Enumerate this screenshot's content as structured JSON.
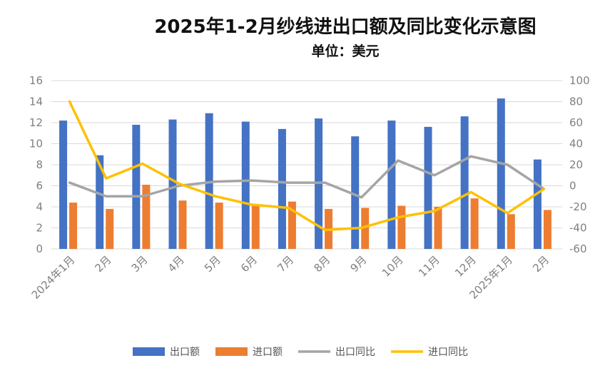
{
  "chart_data": {
    "type": "bar",
    "title": "2025年1-2月纱线进出口额及同比变化示意图",
    "subtitle": "单位：美元",
    "categories": [
      "2024年1月",
      "2月",
      "3月",
      "4月",
      "5月",
      "6月",
      "7月",
      "8月",
      "9月",
      "10月",
      "11月",
      "12月",
      "2025年1月",
      "2月"
    ],
    "left_axis": {
      "ylim": [
        0,
        16
      ],
      "ticks": [
        "0",
        "2",
        "4",
        "6",
        "8",
        "10",
        "12",
        "14",
        "16"
      ]
    },
    "right_axis": {
      "ylim": [
        -60,
        100
      ],
      "ticks": [
        "-60",
        "-40",
        "-20",
        "0",
        "20",
        "40",
        "60",
        "80",
        "100"
      ]
    },
    "grid": true,
    "legend_position": "bottom",
    "series": [
      {
        "name": "出口额",
        "kind": "bar",
        "axis": "left",
        "color": "#4472C4",
        "values": [
          12.2,
          8.9,
          11.8,
          12.3,
          12.9,
          12.1,
          11.4,
          12.4,
          10.7,
          12.2,
          11.6,
          12.6,
          14.3,
          8.5
        ]
      },
      {
        "name": "进口额",
        "kind": "bar",
        "axis": "left",
        "color": "#ED7D31",
        "values": [
          4.4,
          3.8,
          6.1,
          4.6,
          4.4,
          4.1,
          4.5,
          3.8,
          3.9,
          4.1,
          4.0,
          4.8,
          3.3,
          3.7
        ]
      },
      {
        "name": "出口同比",
        "kind": "line",
        "axis": "right",
        "color": "#A5A5A5",
        "values": [
          3,
          -10,
          -10,
          0,
          4,
          5,
          3,
          3,
          -11,
          24,
          10,
          28,
          20,
          -3
        ]
      },
      {
        "name": "进口同比",
        "kind": "line",
        "axis": "right",
        "color": "#FFC000",
        "values": [
          80,
          7,
          21,
          2,
          -10,
          -18,
          -21,
          -42,
          -40,
          -30,
          -24,
          -6,
          -26,
          -3
        ]
      }
    ]
  }
}
